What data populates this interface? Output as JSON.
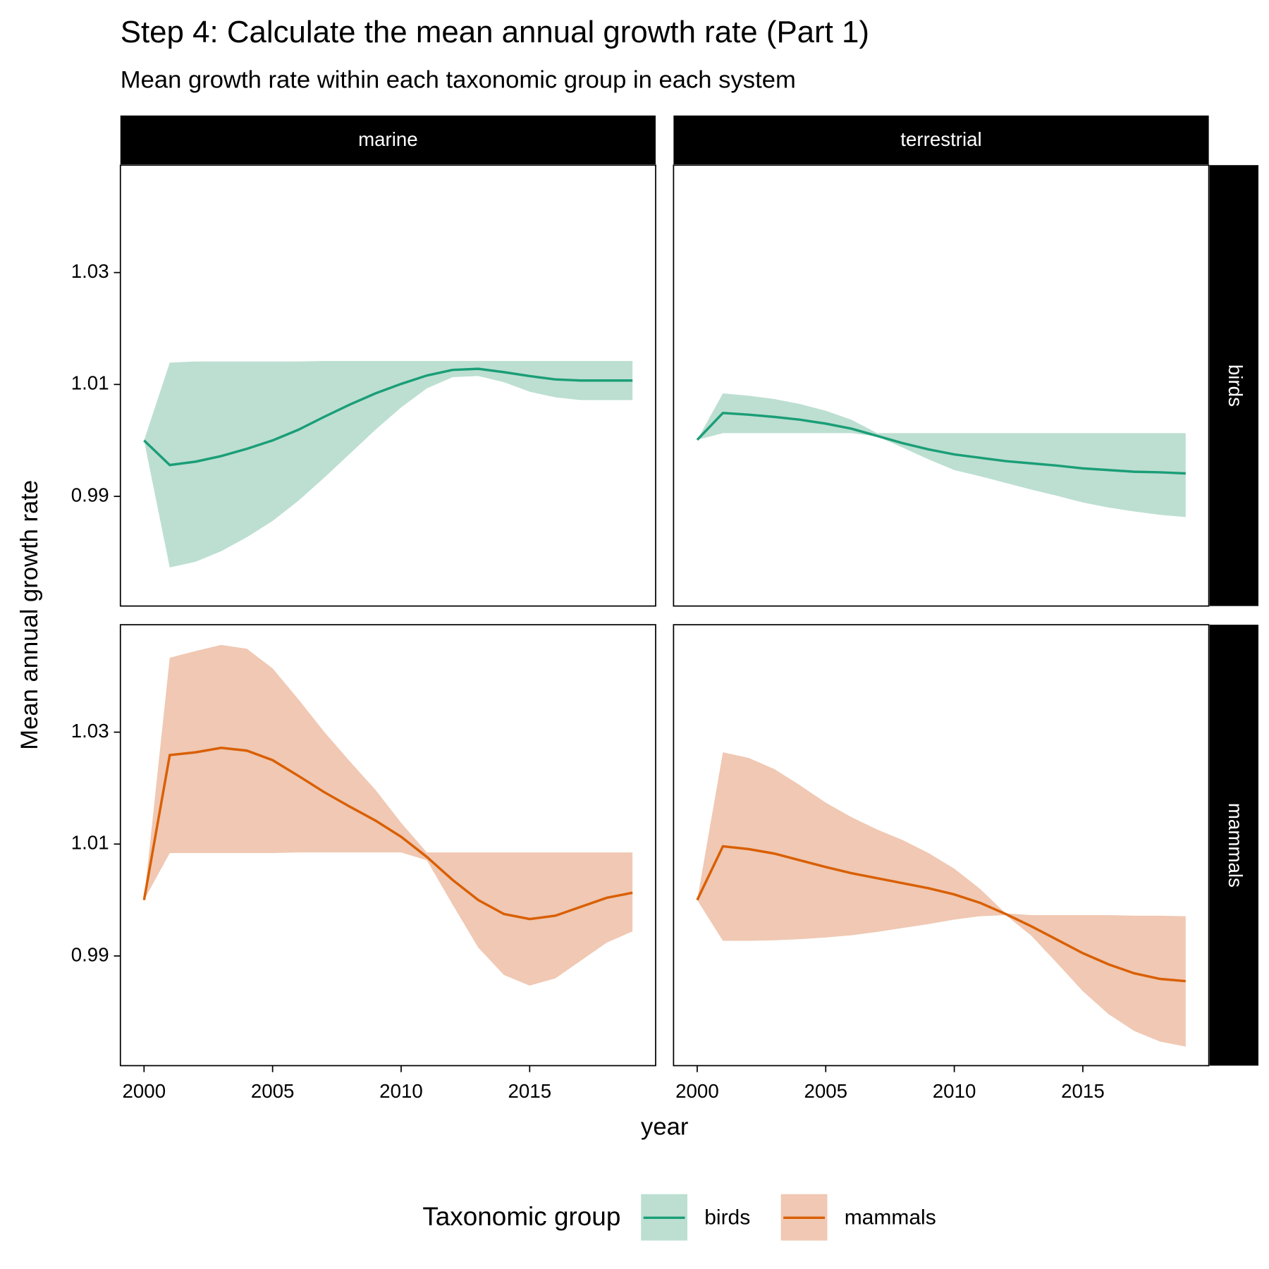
{
  "chart_data": {
    "type": "line",
    "title": "Step 4: Calculate the mean annual growth rate (Part 1)",
    "subtitle": "Mean growth rate within each taxonomic group in each system",
    "x_label": "year",
    "y_label": "Mean annual growth rate",
    "legend_title": "Taxonomic group",
    "columns": [
      "marine",
      "terrestrial"
    ],
    "series": [
      {
        "name": "birds",
        "color": "#1b9e77",
        "fill": "#bcdfd1"
      },
      {
        "name": "mammals",
        "color": "#d95f02",
        "fill": "#f0c8b3"
      }
    ],
    "x": [
      2000,
      2001,
      2002,
      2003,
      2004,
      2005,
      2006,
      2007,
      2008,
      2009,
      2010,
      2011,
      2012,
      2013,
      2014,
      2015,
      2016,
      2017,
      2018,
      2019
    ],
    "xlim": [
      1999.08,
      2019.9
    ],
    "xticks": [
      2000,
      2005,
      2010,
      2015
    ],
    "ylim": [
      0.9704,
      1.0492
    ],
    "yticks": [
      0.99,
      1.01,
      1.03
    ],
    "panels": [
      [
        {
          "values": [
            1.0,
            0.9956,
            0.9962,
            0.9972,
            0.9985,
            1.0,
            1.0019,
            1.0042,
            1.0064,
            1.0084,
            1.0101,
            1.0116,
            1.0126,
            1.0128,
            1.0122,
            1.0115,
            1.0109,
            1.0107,
            1.0107,
            1.0107
          ],
          "upper": [
            1.0,
            1.0139,
            1.0141,
            1.0141,
            1.0141,
            1.0141,
            1.0141,
            1.0142,
            1.0142,
            1.0142,
            1.0142,
            1.0142,
            1.0142,
            1.0142,
            1.0142,
            1.0142,
            1.0142,
            1.0142,
            1.0142,
            1.0142
          ],
          "lower": [
            1.0,
            0.9773,
            0.9783,
            0.9802,
            0.9827,
            0.9856,
            0.9892,
            0.9933,
            0.9976,
            1.0019,
            1.0059,
            1.0093,
            1.0113,
            1.0115,
            1.0104,
            1.0087,
            1.0077,
            1.0072,
            1.0072,
            1.0072
          ]
        },
        {
          "values": [
            1.0001,
            1.0049,
            1.0046,
            1.0042,
            1.0037,
            1.003,
            1.0021,
            1.0008,
            0.9995,
            0.9984,
            0.9975,
            0.9969,
            0.9963,
            0.9959,
            0.9955,
            0.995,
            0.9947,
            0.9944,
            0.9943,
            0.9941
          ],
          "upper": [
            1.0001,
            1.0084,
            1.008,
            1.0074,
            1.0065,
            1.0053,
            1.0037,
            1.0013,
            1.0013,
            1.0013,
            1.0013,
            1.0013,
            1.0013,
            1.0013,
            1.0013,
            1.0013,
            1.0013,
            1.0013,
            1.0013,
            1.0013
          ],
          "lower": [
            1.0001,
            1.0013,
            1.0013,
            1.0013,
            1.0013,
            1.0013,
            1.0013,
            1.0007,
            0.9987,
            0.9966,
            0.9947,
            0.9936,
            0.9924,
            0.9912,
            0.9901,
            0.9889,
            0.988,
            0.9873,
            0.9867,
            0.9863
          ]
        }
      ],
      [
        {
          "values": [
            1.0,
            1.0259,
            1.0264,
            1.0272,
            1.0267,
            1.025,
            1.0222,
            1.0193,
            1.0167,
            1.0142,
            1.0113,
            1.0077,
            1.0036,
            1.0,
            0.9975,
            0.9966,
            0.9972,
            0.9988,
            1.0004,
            1.0013
          ],
          "upper": [
            1.0,
            1.0433,
            1.0445,
            1.0456,
            1.0449,
            1.0414,
            1.0359,
            1.0301,
            1.0248,
            1.0197,
            1.0138,
            1.0085,
            1.0085,
            1.0085,
            1.0085,
            1.0085,
            1.0085,
            1.0085,
            1.0085,
            1.0085
          ],
          "lower": [
            1.0,
            1.0084,
            1.0084,
            1.0084,
            1.0084,
            1.0084,
            1.0085,
            1.0085,
            1.0085,
            1.0085,
            1.0085,
            1.0071,
            0.9992,
            0.9915,
            0.9866,
            0.9847,
            0.986,
            0.9892,
            0.9924,
            0.9944
          ]
        },
        {
          "values": [
            1.0,
            1.0096,
            1.0091,
            1.0083,
            1.0071,
            1.0059,
            1.0048,
            1.0039,
            1.003,
            1.0021,
            1.001,
            0.9995,
            0.9975,
            0.9953,
            0.9929,
            0.9905,
            0.9885,
            0.9869,
            0.9859,
            0.9855
          ],
          "upper": [
            1.0,
            1.0264,
            1.0254,
            1.0234,
            1.0205,
            1.0174,
            1.0148,
            1.0126,
            1.0107,
            1.0084,
            1.0056,
            1.002,
            0.9976,
            0.9973,
            0.9973,
            0.9973,
            0.9973,
            0.9972,
            0.9972,
            0.9971
          ],
          "lower": [
            1.0,
            0.9927,
            0.9927,
            0.9928,
            0.993,
            0.9933,
            0.9937,
            0.9943,
            0.995,
            0.9957,
            0.9965,
            0.9971,
            0.9973,
            0.9936,
            0.9887,
            0.9837,
            0.9796,
            0.9766,
            0.9747,
            0.9738
          ]
        }
      ]
    ]
  }
}
